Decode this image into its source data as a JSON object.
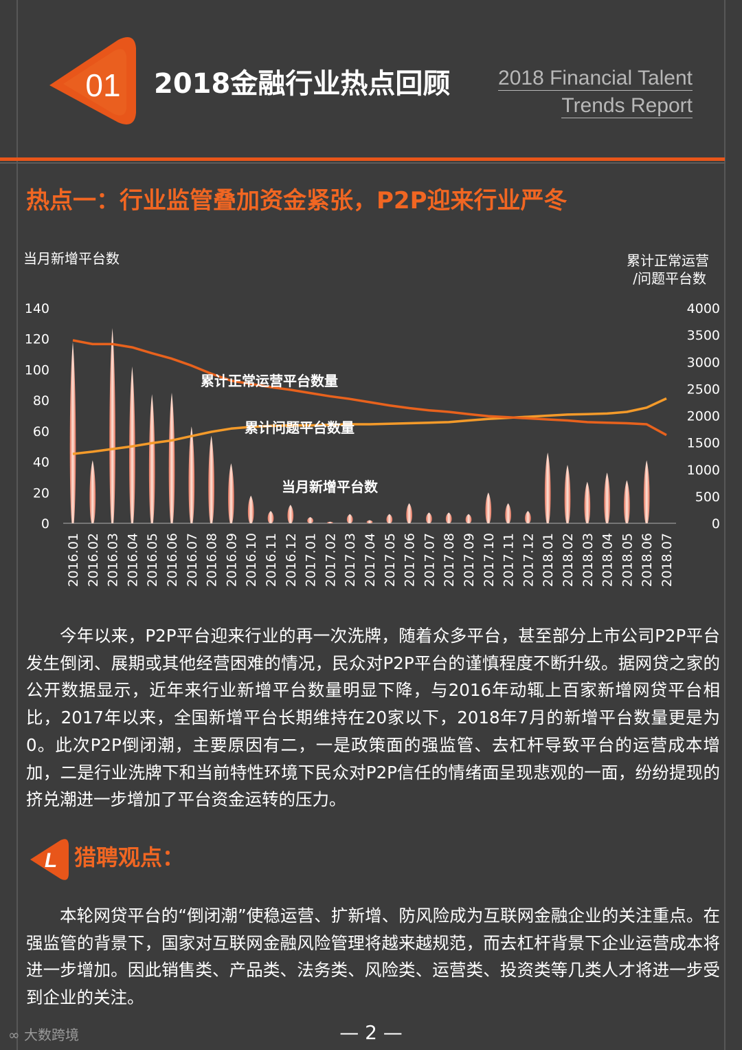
{
  "header": {
    "number": "01",
    "title": "2018金融行业热点回顾",
    "en_line1": "2018 Financial Talent",
    "en_line2": "Trends Report"
  },
  "section": {
    "title": "热点一：行业监管叠加资金紧张，P2P迎来行业严冬"
  },
  "chart_data": {
    "type": "bar+line",
    "left_axis_title": "当月新增平台数",
    "right_axis_title_line1": "累计正常运营",
    "right_axis_title_line2": "/问题平台数",
    "left_ylim": [
      0,
      140
    ],
    "left_ticks": [
      "0",
      "20",
      "40",
      "60",
      "80",
      "100",
      "120",
      "140"
    ],
    "right_ylim": [
      0,
      4000
    ],
    "right_ticks": [
      "0",
      "500",
      "1000",
      "1500",
      "2000",
      "2500",
      "3000",
      "3500",
      "4000"
    ],
    "categories": [
      "2016.01",
      "2016.02",
      "2016.03",
      "2016.04",
      "2016.05",
      "2016.06",
      "2016.07",
      "2016.08",
      "2016.09",
      "2016.10",
      "2016.11",
      "2016.12",
      "2017.01",
      "2017.02",
      "2017.03",
      "2017.04",
      "2017.05",
      "2017.06",
      "2017.07",
      "2017.08",
      "2017.09",
      "2017.10",
      "2017.11",
      "2017.12",
      "2018.01",
      "2018.02",
      "2018.03",
      "2018.04",
      "2018.05",
      "2018.06",
      "2018.07"
    ],
    "series": [
      {
        "name": "当月新增平台数",
        "axis": "left",
        "kind": "bar",
        "values": [
          118,
          41,
          127,
          102,
          84,
          85,
          63,
          57,
          39,
          18,
          8,
          12,
          4,
          1,
          6,
          2,
          6,
          13,
          7,
          7,
          6,
          20,
          13,
          8,
          46,
          38,
          27,
          33,
          28,
          41,
          0
        ]
      },
      {
        "name": "累计正常运营平台数量",
        "axis": "right",
        "kind": "line",
        "values": [
          3400,
          3330,
          3330,
          3270,
          3160,
          3060,
          2930,
          2780,
          2650,
          2590,
          2530,
          2480,
          2420,
          2360,
          2310,
          2250,
          2190,
          2140,
          2100,
          2070,
          2030,
          1990,
          1970,
          1950,
          1930,
          1910,
          1880,
          1870,
          1860,
          1840,
          1640
        ]
      },
      {
        "name": "累计问题平台数量",
        "axis": "right",
        "kind": "line",
        "values": [
          1290,
          1330,
          1380,
          1430,
          1490,
          1540,
          1620,
          1700,
          1760,
          1790,
          1810,
          1820,
          1820,
          1830,
          1840,
          1840,
          1850,
          1860,
          1870,
          1880,
          1910,
          1940,
          1960,
          1980,
          2000,
          2020,
          2030,
          2040,
          2070,
          2150,
          2320
        ]
      }
    ],
    "labels": {
      "normal": "累计正常运营平台数量",
      "problem": "累计问题平台数量",
      "new": "当月新增平台数"
    },
    "colors": {
      "bar": "#f4a58a",
      "normal_line": "#e8621d",
      "problem_line": "#f39a2a"
    }
  },
  "para1": "今年以来，P2P平台迎来行业的再一次洗牌，随着众多平台，甚至部分上市公司P2P平台发生倒闭、展期或其他经营困难的情况，民众对P2P平台的谨慎程度不断升级。据网贷之家的公开数据显示，近年来行业新增平台数量明显下降，与2016年动辄上百家新增网贷平台相比，2017年以来，全国新增平台长期维持在20家以下，2018年7月的新增平台数量更是为0。此次P2P倒闭潮，主要原因有二，一是政策面的强监管、去杠杆导致平台的运营成本增加，二是行业洗牌下和当前特性环境下民众对P2P信任的情绪面呈现悲观的一面，纷纷提现的挤兑潮进一步增加了平台资金运转的压力。",
  "viewpoint": {
    "icon_letter": "L",
    "title": "猎聘观点：",
    "text": "本轮网贷平台的“倒闭潮”使稳运营、扩新增、防风险成为互联网金融企业的关注重点。在强监管的背景下，国家对互联网金融风险管理将越来越规范，而去杠杆背景下企业运营成本将进一步增加。因此销售类、产品类、法务类、风险类、运营类、投资类等几类人才将进一步受到企业的关注。"
  },
  "footer": {
    "page": "— 2 —",
    "watermark": "大数跨境"
  },
  "colors": {
    "background": "#3c3c3c",
    "accent": "#f16622",
    "rule": "#e8561a"
  }
}
